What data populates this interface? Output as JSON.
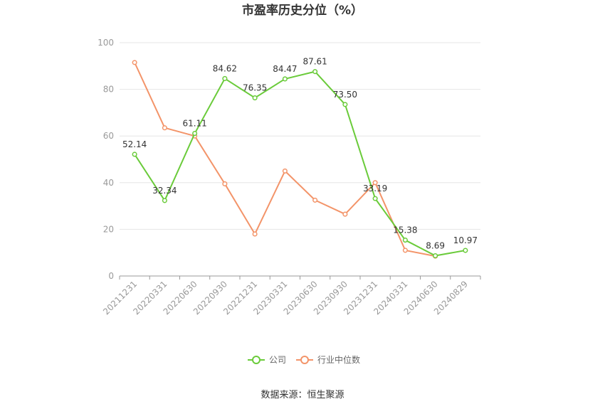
{
  "chart_data": {
    "type": "line",
    "title": "市盈率历史分位（%）",
    "categories": [
      "20211231",
      "20220331",
      "20220630",
      "20220930",
      "20221231",
      "20230331",
      "20230630",
      "20230930",
      "20231231",
      "20240331",
      "20240630",
      "20240829"
    ],
    "ylim": [
      0,
      100
    ],
    "yticks": [
      "0",
      "20",
      "40",
      "60",
      "80",
      "100"
    ],
    "grid": true,
    "legend_position": "bottom",
    "series": [
      {
        "name": "公司",
        "color": "#6acb3a",
        "values": [
          52.14,
          32.34,
          61.11,
          84.62,
          76.35,
          84.47,
          87.61,
          73.5,
          33.19,
          15.38,
          8.69,
          10.97
        ],
        "labels": [
          "52.14",
          "32.34",
          "61.11",
          "84.62",
          "76.35",
          "84.47",
          "87.61",
          "73.50",
          "33.19",
          "15.38",
          "8.69",
          "10.97"
        ]
      },
      {
        "name": "行业中位数",
        "color": "#f39469",
        "values": [
          91.5,
          63.5,
          60.0,
          39.5,
          18.0,
          45.0,
          32.5,
          26.5,
          40.0,
          11.0,
          8.5,
          null
        ]
      }
    ],
    "source": "数据来源：恒生聚源"
  }
}
